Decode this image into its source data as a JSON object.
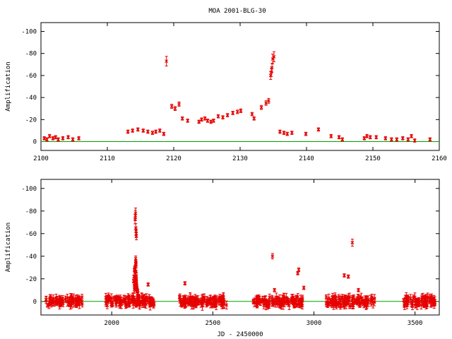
{
  "chart_data": [
    {
      "type": "scatter",
      "title": "MOA 2001-BLG-30",
      "xlabel": "",
      "ylabel": "Amplification",
      "xlim": [
        2100,
        2160
      ],
      "ylim": [
        8,
        -108
      ],
      "xticks": [
        2100,
        2110,
        2120,
        2130,
        2140,
        2150,
        2160
      ],
      "yticks": [
        0,
        -20,
        -40,
        -60,
        -80,
        -100
      ],
      "baseline": 0,
      "colors": {
        "points": "#e60000",
        "baseline": "#00a000"
      },
      "series": [
        {
          "x": [
            2100.5,
            2100.9,
            2101.3,
            2101.8,
            2102.2,
            2102.6,
            2103.3,
            2104.1,
            2104.8,
            2105.7,
            2113.1,
            2113.8,
            2114.6,
            2115.4,
            2116.1,
            2116.8,
            2117.3,
            2117.9,
            2118.5,
            2118.9,
            2119.7,
            2120.2,
            2120.8,
            2121.3,
            2122.1,
            2123.8,
            2124.2,
            2124.7,
            2125.1,
            2125.6,
            2126.0,
            2126.7,
            2127.4,
            2128.1,
            2128.9,
            2129.6,
            2130.1,
            2131.8,
            2132.1,
            2133.2,
            2133.9,
            2134.3,
            2134.6,
            2134.7,
            2134.8,
            2134.9,
            2135.1,
            2136.0,
            2136.6,
            2137.1,
            2137.8,
            2139.9,
            2141.8,
            2143.7,
            2144.9,
            2145.4,
            2148.7,
            2149.1,
            2149.6,
            2150.5,
            2151.9,
            2152.8,
            2153.6,
            2154.5,
            2155.3,
            2155.8,
            2156.3,
            2158.6
          ],
          "y": [
            -3,
            -2,
            -5,
            -3,
            -4,
            -2,
            -3,
            -4,
            -2,
            -3,
            -9,
            -10,
            -11,
            -10,
            -9,
            -8,
            -9,
            -10,
            -7,
            -73,
            -32,
            -30,
            -34,
            -21,
            -19,
            -18,
            -20,
            -21,
            -19,
            -18,
            -19,
            -23,
            -22,
            -24,
            -26,
            -27,
            -28,
            -25,
            -21,
            -31,
            -35,
            -37,
            -60,
            -63,
            -67,
            -75,
            -77,
            -9,
            -8,
            -7,
            -8,
            -7,
            -11,
            -5,
            -4,
            -2,
            -3,
            -5,
            -4,
            -4,
            -3,
            -2,
            -2,
            -3,
            -2,
            -5,
            -1,
            -2
          ]
        }
      ]
    },
    {
      "type": "scatter",
      "title": "",
      "xlabel": "JD - 2450000",
      "ylabel": "Amplification",
      "xlim": [
        1650,
        3620
      ],
      "ylim": [
        12,
        -108
      ],
      "xticks": [
        2000,
        2500,
        3000,
        3500
      ],
      "yticks": [
        0,
        -20,
        -40,
        -60,
        -80,
        -100
      ],
      "baseline": 0,
      "colors": {
        "points": "#e60000",
        "baseline": "#00a000"
      },
      "series": [
        {
          "x": [
            2115,
            2117,
            2118,
            2119,
            2120,
            2121,
            2122,
            2118.5,
            2119.2,
            2120.4,
            2112,
            2110,
            2108,
            2114,
            2116,
            2180,
            2362,
            2795,
            2805,
            2920,
            2925,
            2950,
            3150,
            3170,
            3190,
            3220
          ],
          "y": [
            -73,
            -76,
            -78,
            -65,
            -62,
            -60,
            -58,
            -38,
            -35,
            -33,
            -28,
            -22,
            -18,
            -30,
            -26,
            -15,
            -16,
            -40,
            -10,
            -25,
            -28,
            -12,
            -23,
            -22,
            -52,
            -10
          ]
        }
      ],
      "clusters": [
        {
          "from": 1675,
          "to": 1760
        },
        {
          "from": 1770,
          "to": 1855
        },
        {
          "from": 1970,
          "to": 2210
        },
        {
          "from": 2335,
          "to": 2570
        },
        {
          "from": 2700,
          "to": 2950
        },
        {
          "from": 3060,
          "to": 3300
        },
        {
          "from": 3440,
          "to": 3600
        }
      ]
    }
  ]
}
